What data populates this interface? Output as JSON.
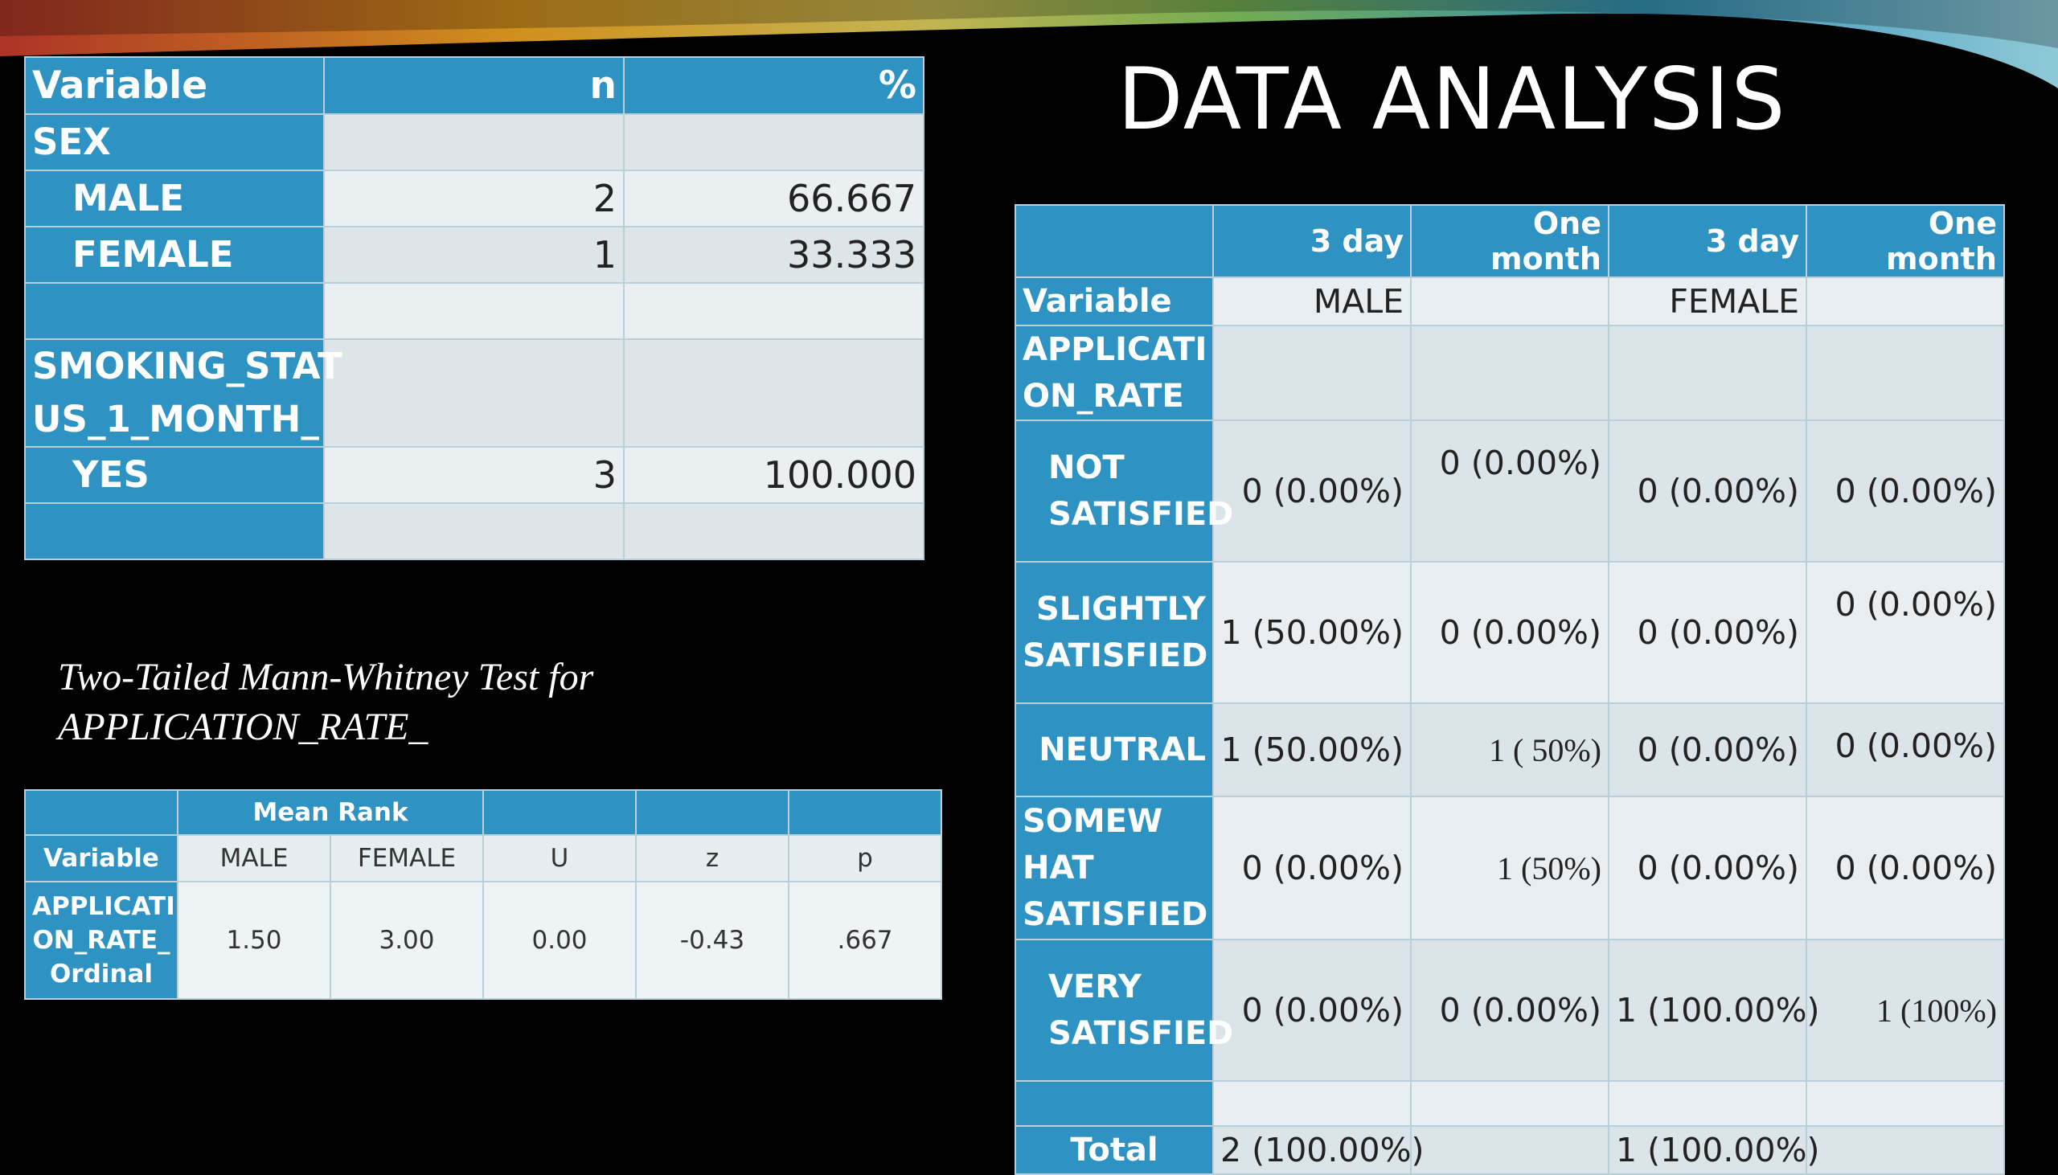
{
  "slide": {
    "title": "DATA ANALYSIS"
  },
  "table1": {
    "headers": [
      "Variable",
      "n",
      "%"
    ],
    "rows": [
      {
        "label": "SEX",
        "n": "",
        "pct": ""
      },
      {
        "label": "MALE",
        "n": "2",
        "pct": "66.667"
      },
      {
        "label": "FEMALE",
        "n": "1",
        "pct": "33.333"
      },
      {
        "label": "",
        "n": "",
        "pct": ""
      },
      {
        "label": "SMOKING_STAT US_1_MONTH_",
        "n": "",
        "pct": ""
      },
      {
        "label": "YES",
        "n": "3",
        "pct": "100.000"
      },
      {
        "label": "",
        "n": "",
        "pct": ""
      }
    ]
  },
  "subtitle": {
    "line1": "Two-Tailed Mann-Whitney Test for",
    "line2": "APPLICATION_RATE_"
  },
  "table2": {
    "group_header": "Mean Rank",
    "headers": [
      "Variable",
      "MALE",
      "FEMALE",
      "U",
      "z",
      "p"
    ],
    "row": {
      "label": "APPLICATI ON_RATE_ Ordinal",
      "male": "1.50",
      "female": "3.00",
      "u": "0.00",
      "z": "-0.43",
      "p": ".667"
    }
  },
  "table3": {
    "headers": [
      "",
      "3 day",
      "One month",
      "3 day",
      "One month"
    ],
    "group_row": {
      "label": "Variable",
      "male": "MALE",
      "female": "FEMALE"
    },
    "section_label": "APPLICATI ON_RATE",
    "rows": [
      {
        "label": "NOT SATISFIED",
        "values": [
          "0 (0.00%)",
          "0 (0.00%)",
          "0 (0.00%)",
          "0 (0.00%)"
        ]
      },
      {
        "label": "SLIGHTLY SATISFIED",
        "values": [
          "1 (50.00%)",
          "0 (0.00%)",
          "0 (0.00%)",
          "0 (0.00%)"
        ]
      },
      {
        "label": "NEUTRAL",
        "values": [
          "1 (50.00%)",
          "1 ( 50%)",
          "0 (0.00%)",
          "0 (0.00%)"
        ]
      },
      {
        "label": "SOMEW HAT SATISFIED",
        "values": [
          "0 (0.00%)",
          "1 (50%)",
          "0 (0.00%)",
          "0 (0.00%)"
        ]
      },
      {
        "label": "VERY SATISFIED",
        "values": [
          "0 (0.00%)",
          "0 (0.00%)",
          "1 (100.00%)",
          "1 (100%)"
        ]
      }
    ],
    "total": {
      "label": "Total",
      "male": "2 (100.00%)",
      "female": "1 (100.00%)"
    }
  },
  "colors": {
    "header_blue": "#2e93c2",
    "cell_light": "#dde5e9",
    "background": "#000000"
  }
}
